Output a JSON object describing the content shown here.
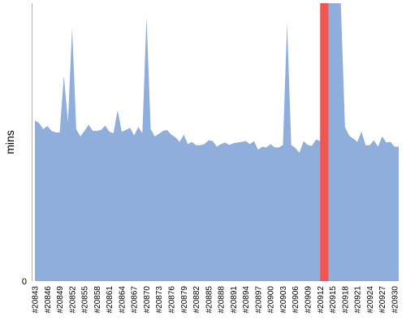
{
  "chart_data": {
    "type": "area",
    "ylabel": "mins",
    "y_tick_labels": [
      {
        "value": 0,
        "label": "0"
      }
    ],
    "ylim": [
      0,
      100
    ],
    "colors": {
      "area": "#8faedc",
      "highlight": "#f05552",
      "axis": "#b0b0b0"
    },
    "grid": false,
    "x_start": 20843,
    "x_end": 20931,
    "x_label_prefix": "#",
    "x_tick_labels": [
      "#20843",
      "#20846",
      "#20849",
      "#20852",
      "#20855",
      "#20858",
      "#20861",
      "#20864",
      "#20867",
      "#20870",
      "#20873",
      "#20876",
      "#20879",
      "#20882",
      "#20885",
      "#20888",
      "#20891",
      "#20894",
      "#20897",
      "#20900",
      "#20903",
      "#20906",
      "#20909",
      "#20912",
      "#20915",
      "#20918",
      "#20921",
      "#20924",
      "#20927",
      "#20930"
    ],
    "x_tick_values": [
      20843,
      20846,
      20849,
      20852,
      20855,
      20858,
      20861,
      20864,
      20867,
      20870,
      20873,
      20876,
      20879,
      20882,
      20885,
      20888,
      20891,
      20894,
      20897,
      20900,
      20903,
      20906,
      20909,
      20912,
      20915,
      20918,
      20921,
      20924,
      20927,
      20930
    ],
    "values": [
      57.8,
      56.9,
      54.7,
      55.8,
      54.1,
      53.5,
      53.5,
      73.9,
      57.2,
      91.2,
      54.7,
      52.1,
      54.1,
      56.3,
      54.1,
      54.1,
      54.4,
      56,
      53.8,
      53.2,
      61.5,
      53.8,
      54.4,
      55.2,
      52.4,
      55.5,
      53.2,
      95.3,
      54.7,
      52.1,
      53,
      54.1,
      54.4,
      52.7,
      51.8,
      50.1,
      52.7,
      49.3,
      50.1,
      48.9,
      48.9,
      49.3,
      50.7,
      50.4,
      48.4,
      49.3,
      49.9,
      49,
      49.6,
      49.9,
      50.1,
      50.4,
      49.3,
      50.4,
      47.3,
      48.4,
      48.1,
      49.3,
      48.1,
      48.1,
      49,
      92.9,
      49,
      47.9,
      46.2,
      50.4,
      49,
      48.7,
      51,
      50.4,
      100,
      100,
      100,
      100,
      100,
      55.5,
      52.4,
      51.3,
      50.1,
      53.8,
      48.9,
      48.9,
      50.7,
      48.4,
      52.1,
      49.9,
      50.1,
      48.4,
      48.4
    ],
    "highlight": {
      "x": 20913,
      "span": 2
    }
  }
}
